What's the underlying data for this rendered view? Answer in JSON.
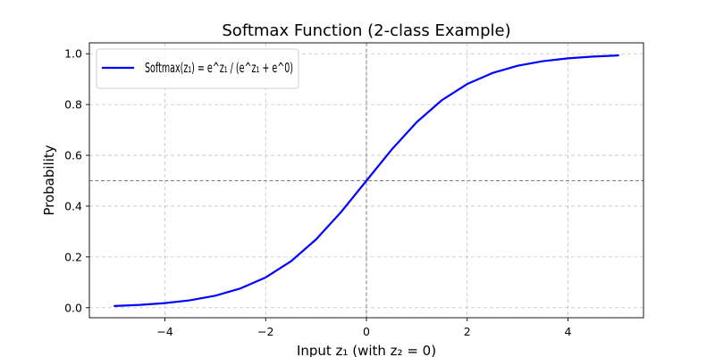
{
  "chart_data": {
    "type": "line",
    "title": "Softmax Function (2-class Example)",
    "xlabel": "Input z₁ (with z₂ = 0)",
    "ylabel": "Probability",
    "xlim": [
      -5.5,
      5.5
    ],
    "ylim": [
      -0.0395,
      1.043
    ],
    "xticks": [
      -4,
      -2,
      0,
      2,
      4
    ],
    "xtick_labels": [
      "−4",
      "−2",
      "0",
      "2",
      "4"
    ],
    "yticks": [
      0.0,
      0.2,
      0.4,
      0.6,
      0.8,
      1.0
    ],
    "ytick_labels": [
      "0.0",
      "0.2",
      "0.4",
      "0.6",
      "0.8",
      "1.0"
    ],
    "grid": true,
    "legend_position": "top-left",
    "reference_lines": {
      "x": 0,
      "y": 0.5,
      "color": "#808080"
    },
    "series": [
      {
        "name": "Softmax(z₁) = e^z₁ / (e^z₁ + e^0)",
        "color": "#0000ff",
        "x": [
          -5,
          -4.5,
          -4,
          -3.5,
          -3,
          -2.5,
          -2,
          -1.5,
          -1,
          -0.5,
          0,
          0.5,
          1,
          1.5,
          2,
          2.5,
          3,
          3.5,
          4,
          4.5,
          5
        ],
        "y": [
          0.0067,
          0.011,
          0.018,
          0.0293,
          0.0474,
          0.0759,
          0.1192,
          0.1824,
          0.2689,
          0.3775,
          0.5,
          0.6225,
          0.7311,
          0.8176,
          0.8808,
          0.9241,
          0.9526,
          0.9707,
          0.982,
          0.989,
          0.9933
        ]
      }
    ]
  }
}
